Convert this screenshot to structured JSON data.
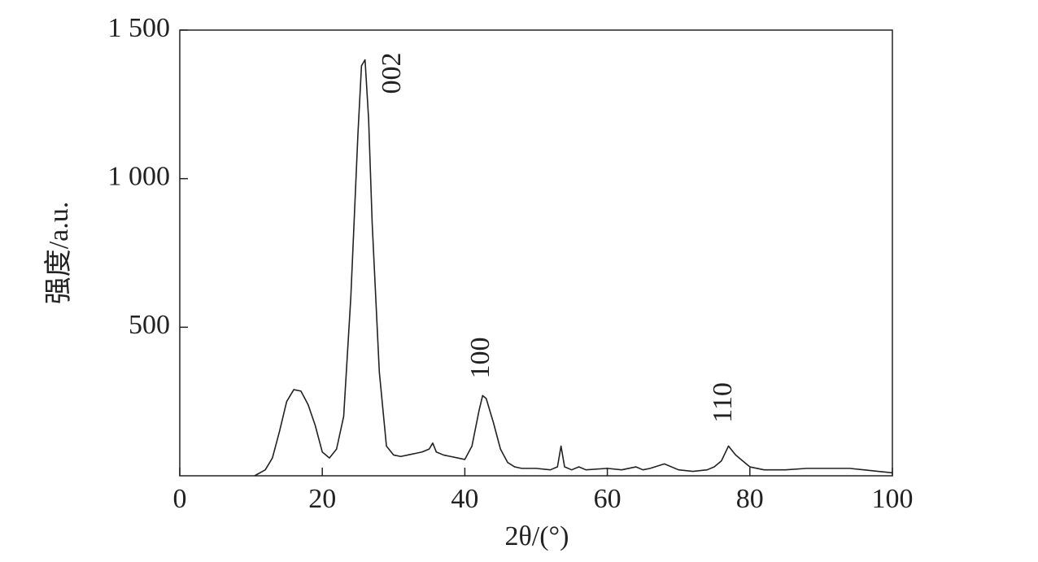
{
  "chart_data": {
    "type": "line",
    "x_label": "2θ/(°)",
    "y_label": "强度/a.u.",
    "annotations": [
      "002",
      "100",
      "110"
    ],
    "xlim": [
      0,
      100
    ],
    "xticks": [
      0,
      20,
      40,
      60,
      80,
      100
    ],
    "ylim": [
      0,
      1500
    ],
    "yticks": [
      500,
      {
        "value": 1000,
        "label": "1 000"
      },
      {
        "value": 1500,
        "label": "1 500"
      }
    ],
    "color": "#222222",
    "x": [
      10.5,
      12,
      13,
      14,
      15,
      16,
      17,
      18,
      19,
      20,
      21,
      22,
      23,
      24,
      25,
      25.5,
      26,
      26.5,
      27,
      28,
      29,
      30,
      31,
      32,
      33,
      34,
      35,
      35.5,
      36,
      37,
      38,
      39,
      40,
      41,
      42,
      42.5,
      43,
      44,
      45,
      46,
      47,
      48,
      50,
      52,
      53,
      53.5,
      54,
      55,
      56,
      57,
      60,
      62,
      64,
      65,
      66,
      68,
      70,
      72,
      74,
      75,
      76,
      77,
      78,
      79,
      80,
      82,
      85,
      88,
      90,
      92,
      94,
      96,
      98,
      100
    ],
    "values": [
      0,
      20,
      60,
      150,
      250,
      290,
      285,
      240,
      170,
      80,
      60,
      90,
      200,
      600,
      1150,
      1380,
      1400,
      1200,
      850,
      350,
      100,
      70,
      65,
      70,
      75,
      80,
      90,
      110,
      80,
      70,
      65,
      60,
      55,
      100,
      220,
      270,
      260,
      180,
      90,
      45,
      30,
      25,
      25,
      20,
      30,
      100,
      30,
      20,
      30,
      20,
      25,
      20,
      30,
      20,
      25,
      40,
      20,
      15,
      20,
      30,
      50,
      100,
      70,
      50,
      30,
      20,
      20,
      25,
      25,
      25,
      25,
      20,
      15,
      10
    ]
  }
}
